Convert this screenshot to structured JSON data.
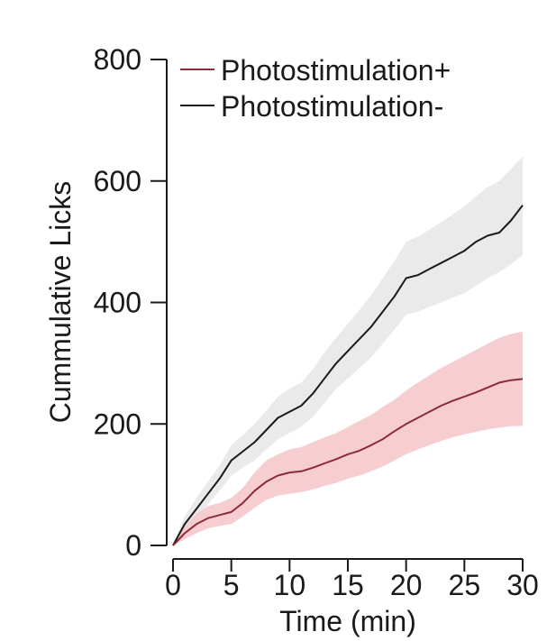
{
  "chart_data": {
    "type": "line",
    "xlabel": "Time (min)",
    "ylabel": "Cummulative Licks",
    "xlim": [
      0,
      30
    ],
    "ylim": [
      0,
      800
    ],
    "xticks": [
      0,
      5,
      10,
      15,
      20,
      25,
      30
    ],
    "yticks": [
      0,
      200,
      400,
      600,
      800
    ],
    "legend_position": "top-left",
    "grid": false,
    "series": [
      {
        "name": "Photostimulation+",
        "color": "#8b2b3a",
        "band_color": "#f4c5c9",
        "x": [
          0,
          1,
          2,
          3,
          4,
          5,
          6,
          7,
          8,
          9,
          10,
          11,
          12,
          13,
          14,
          15,
          16,
          17,
          18,
          19,
          20,
          21,
          22,
          23,
          24,
          25,
          26,
          27,
          28,
          29,
          30
        ],
        "y": [
          0,
          20,
          35,
          45,
          50,
          55,
          70,
          90,
          105,
          115,
          120,
          122,
          128,
          135,
          142,
          150,
          156,
          165,
          175,
          188,
          200,
          210,
          220,
          230,
          238,
          245,
          252,
          260,
          268,
          272,
          274
        ],
        "lower": [
          0,
          10,
          20,
          28,
          32,
          35,
          48,
          62,
          75,
          82,
          85,
          88,
          92,
          98,
          103,
          110,
          115,
          122,
          130,
          140,
          150,
          158,
          165,
          172,
          178,
          183,
          187,
          191,
          194,
          196,
          197
        ],
        "upper": [
          0,
          32,
          52,
          65,
          70,
          78,
          95,
          120,
          140,
          150,
          158,
          162,
          170,
          178,
          185,
          195,
          205,
          215,
          228,
          240,
          255,
          268,
          280,
          292,
          302,
          312,
          322,
          332,
          342,
          348,
          352
        ]
      },
      {
        "name": "Photostimulation-",
        "color": "#1a1a1a",
        "band_color": "#e6e6e6",
        "x": [
          0,
          1,
          2,
          3,
          4,
          5,
          6,
          7,
          8,
          9,
          10,
          11,
          12,
          13,
          14,
          15,
          16,
          17,
          18,
          19,
          20,
          21,
          22,
          23,
          24,
          25,
          26,
          27,
          28,
          29,
          30
        ],
        "y": [
          0,
          35,
          60,
          85,
          110,
          140,
          155,
          170,
          190,
          210,
          220,
          230,
          250,
          275,
          300,
          320,
          340,
          360,
          385,
          410,
          440,
          445,
          455,
          465,
          475,
          485,
          500,
          510,
          515,
          535,
          560
        ],
        "lower": [
          0,
          25,
          45,
          68,
          90,
          115,
          128,
          140,
          158,
          175,
          185,
          195,
          212,
          235,
          258,
          275,
          292,
          310,
          332,
          355,
          380,
          385,
          393,
          400,
          408,
          415,
          428,
          440,
          450,
          463,
          478
        ],
        "upper": [
          0,
          48,
          78,
          105,
          132,
          165,
          182,
          200,
          222,
          245,
          258,
          268,
          290,
          318,
          342,
          365,
          388,
          412,
          440,
          468,
          500,
          508,
          520,
          532,
          545,
          558,
          575,
          590,
          600,
          620,
          640
        ]
      }
    ]
  }
}
